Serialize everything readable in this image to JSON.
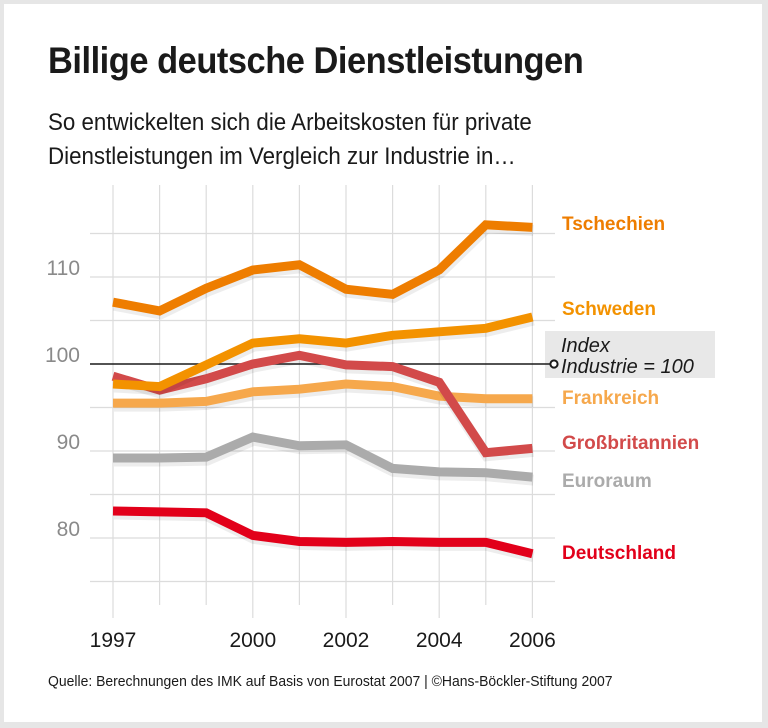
{
  "header": {
    "title": "Billige deutsche Dienstleistungen",
    "subtitle_line1": "So entwickelten sich die Arbeitskosten für private",
    "subtitle_line2": "Dienstleistungen im Vergleich zur Industrie in…"
  },
  "footer": {
    "source": "Quelle: Berechnungen des IMK auf Basis von Eurostat 2007 | ©Hans-Böckler-Stiftung 2007"
  },
  "chart_data": {
    "type": "line",
    "title": "Billige deutsche Dienstleistungen",
    "subtitle": "So entwickelten sich die Arbeitskosten für private Dienstleistungen im Vergleich zur Industrie in…",
    "xlabel": "",
    "ylabel": "",
    "x": [
      1997,
      1998,
      1999,
      2000,
      2001,
      2002,
      2003,
      2004,
      2005,
      2006
    ],
    "x_tick_labels": [
      "1997",
      "2000",
      "2002",
      "2004",
      "2006"
    ],
    "x_tick_values": [
      1997,
      2000,
      2002,
      2004,
      2006
    ],
    "y_tick_labels": [
      "110",
      "100",
      "90",
      "80"
    ],
    "y_tick_values": [
      110,
      100,
      90,
      80
    ],
    "ylim": [
      72.5,
      117.5
    ],
    "grid": true,
    "grid_y_step": 5,
    "reference_line": {
      "value": 100,
      "label_line1": "Index",
      "label_line2": "Industrie = 100"
    },
    "legend_placement": "right (direct labels)",
    "series": [
      {
        "name": "Tschechien",
        "color": "#EE7D00",
        "values": [
          107.1,
          106.1,
          108.7,
          110.8,
          111.4,
          108.6,
          108.0,
          110.8,
          116.0,
          115.7
        ]
      },
      {
        "name": "Schweden",
        "color": "#F39200",
        "values": [
          97.7,
          97.4,
          99.9,
          102.4,
          102.9,
          102.4,
          103.3,
          103.7,
          104.1,
          105.4
        ]
      },
      {
        "name": "Frankreich",
        "color": "#F6A84C",
        "values": [
          95.5,
          95.5,
          95.7,
          96.8,
          97.1,
          97.7,
          97.4,
          96.3,
          96.0,
          96.0
        ]
      },
      {
        "name": "Großbritannien",
        "color": "#D24A4A",
        "values": [
          98.6,
          97.0,
          98.3,
          100.0,
          101.0,
          99.9,
          99.7,
          97.9,
          89.8,
          90.3
        ]
      },
      {
        "name": "Euroraum",
        "color": "#ABABAB",
        "values": [
          89.2,
          89.2,
          89.3,
          91.6,
          90.6,
          90.7,
          88.0,
          87.6,
          87.5,
          87.0
        ]
      },
      {
        "name": "Deutschland",
        "color": "#E2001A",
        "values": [
          83.1,
          83.0,
          82.9,
          80.3,
          79.6,
          79.5,
          79.6,
          79.5,
          79.5,
          78.2
        ]
      }
    ]
  }
}
